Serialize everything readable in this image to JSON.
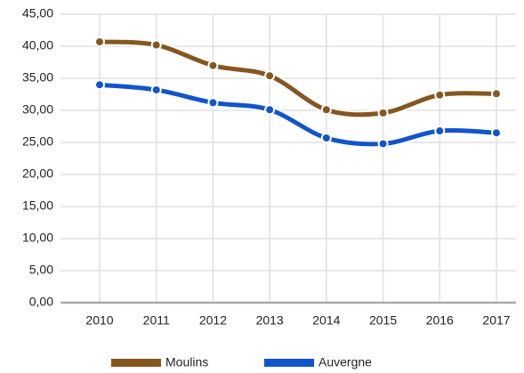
{
  "chart_data": {
    "type": "line",
    "categories": [
      "2010",
      "2011",
      "2012",
      "2013",
      "2014",
      "2015",
      "2016",
      "2017"
    ],
    "series": [
      {
        "name": "Moulins",
        "color": "#87561f",
        "values": [
          40.7,
          40.2,
          37.0,
          35.4,
          30.1,
          29.6,
          32.4,
          32.6
        ]
      },
      {
        "name": "Auvergne",
        "color": "#1155cc",
        "values": [
          34.0,
          33.2,
          31.2,
          30.1,
          25.7,
          24.8,
          26.8,
          26.5
        ]
      }
    ],
    "ylim": [
      0,
      45
    ],
    "yticks": [
      {
        "value": 0,
        "label": "0,00"
      },
      {
        "value": 5,
        "label": "5,00"
      },
      {
        "value": 10,
        "label": "10,00"
      },
      {
        "value": 15,
        "label": "15,00"
      },
      {
        "value": 20,
        "label": "20,00"
      },
      {
        "value": 25,
        "label": "25,00"
      },
      {
        "value": 30,
        "label": "30,00"
      },
      {
        "value": 35,
        "label": "35,00"
      },
      {
        "value": 40,
        "label": "40,00"
      },
      {
        "value": 45,
        "label": "45,00"
      }
    ],
    "grid": true,
    "legend": "bottom"
  }
}
